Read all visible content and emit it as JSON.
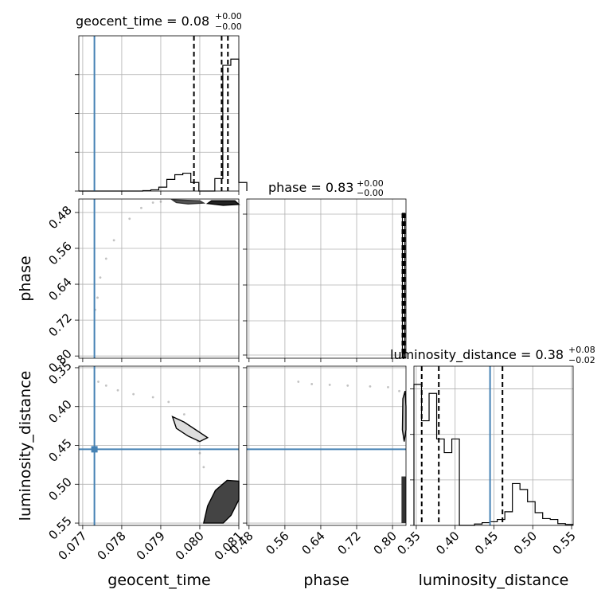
{
  "chart_data": {
    "type": "corner",
    "parameters": [
      "geocent_time",
      "phase",
      "luminosity_distance"
    ],
    "truth_color": "#4682b4",
    "panels": {
      "geocent_time": {
        "title_name": "geocent_time",
        "title_value": "0.08",
        "title_upper": "+0.00",
        "title_lower": "−0.00",
        "xlim": [
          0.0769,
          0.081
        ],
        "xticks": [
          "0.077",
          "0.078",
          "0.079",
          "0.080",
          "0.081"
        ],
        "xlabel": "geocent_time",
        "truth": 0.0773,
        "quantiles": [
          0.07985,
          0.08056,
          0.08072
        ],
        "hist": {
          "start": 0.0769,
          "step": 0.000205,
          "counts": [
            0,
            0,
            0,
            0,
            0,
            0,
            0,
            0,
            0.3,
            0.8,
            2.5,
            7.5,
            10.5,
            11.5,
            5.5,
            0,
            0,
            8,
            81,
            85,
            5.5
          ]
        }
      },
      "phase": {
        "title_name": "phase",
        "title_value": "0.83",
        "title_upper": "+0.00",
        "title_lower": "−0.00",
        "xlim": [
          0.475,
          0.83
        ],
        "xticks": [
          "0.48",
          "0.56",
          "0.64",
          "0.72",
          "0.80"
        ],
        "yticks": [
          "0.80",
          "0.72",
          "0.64",
          "0.56",
          "0.48"
        ],
        "xlabel": "phase",
        "ylabel": "phase",
        "quantiles": [
          0.822,
          0.8255,
          0.8275
        ]
      },
      "luminosity_distance": {
        "title_name": "luminosity_distance",
        "title_value": "0.38",
        "title_upper": "+0.08",
        "title_lower": "−0.02",
        "xlim": [
          0.347,
          0.552
        ],
        "xticks": [
          "0.35",
          "0.40",
          "0.45",
          "0.50",
          "0.55"
        ],
        "yticks": [
          "0.55",
          "0.50",
          "0.45",
          "0.40",
          "0.35"
        ],
        "xlabel": "luminosity_distance",
        "ylabel": "luminosity_distance",
        "truth": 0.445,
        "quantiles": [
          0.357,
          0.379,
          0.461
        ],
        "hist": {
          "start": 0.347,
          "step": 0.00975,
          "counts": [
            31,
            23,
            29,
            19,
            16,
            19,
            0,
            0,
            0.3,
            0.6,
            0.8,
            1.3,
            3,
            9.2,
            7.9,
            5.2,
            2.8,
            1.5,
            1.3,
            0.4,
            0.2
          ]
        }
      }
    }
  }
}
